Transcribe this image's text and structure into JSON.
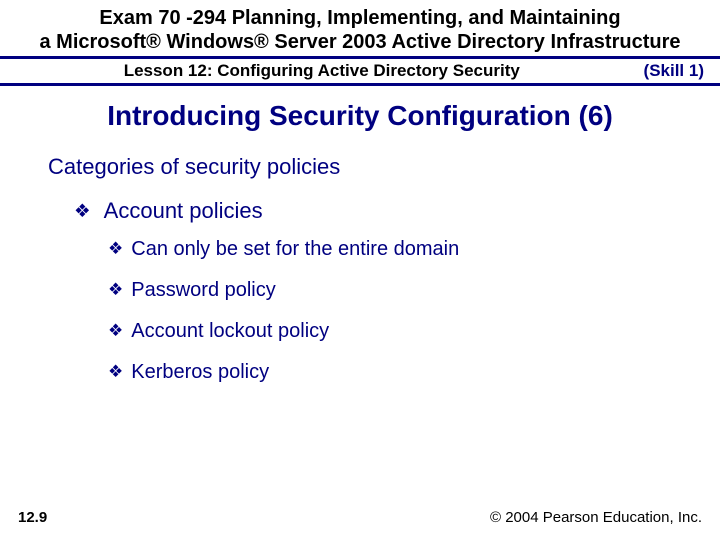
{
  "colors": {
    "accent": "#000080",
    "text": "#000000",
    "background": "#ffffff"
  },
  "fontsizes": {
    "examTitle": 20,
    "metaRow": 17,
    "slideTitle": 28,
    "level0": 22,
    "level1": 22,
    "level2": 20,
    "footer": 15
  },
  "header": {
    "examTitleLine1": "Exam 70 -294 Planning, Implementing, and Maintaining",
    "examTitleLine2": "a Microsoft® Windows® Server 2003 Active Directory Infrastructure",
    "lesson": "Lesson 12: Configuring Active Directory Security",
    "skill": "(Skill 1)"
  },
  "title": "Introducing Security Configuration (6)",
  "content": {
    "heading": "Categories of security policies",
    "level1": [
      {
        "label": "Account policies",
        "children": [
          "Can only be set for the entire domain",
          "Password policy",
          "Account lockout policy",
          "Kerberos policy"
        ]
      }
    ]
  },
  "footer": {
    "page": "12.9",
    "copyright": "© 2004 Pearson Education, Inc."
  },
  "bullet_glyph": "❖"
}
